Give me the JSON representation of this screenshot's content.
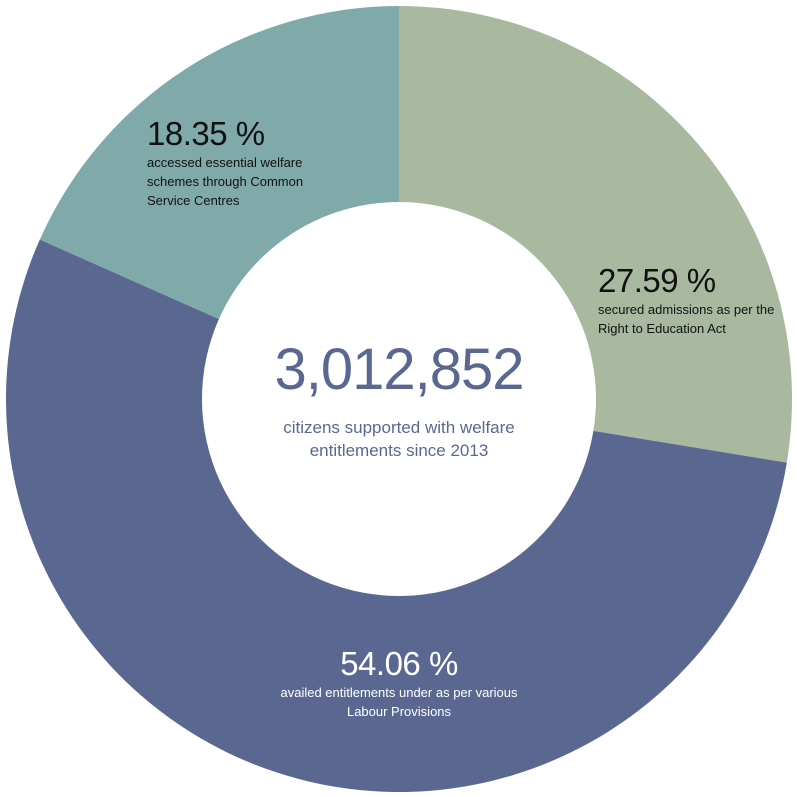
{
  "chart_data": {
    "type": "donut",
    "center_text": "3,012,852",
    "center_subtitle": "citizens supported with welfare entitlements since 2013",
    "categories": [
      "secured admissions as per the Right to Education Act",
      "availed entitlements under as per various Labour Provisions",
      "accessed essential welfare schemes through Common Service Centres"
    ],
    "values": [
      27.59,
      54.06,
      18.35
    ],
    "value_labels": [
      "27.59 %",
      "54.06 %",
      "18.35 %"
    ],
    "colors": [
      "#a8b9a0",
      "#5a6891",
      "#7faaa9"
    ],
    "label_colors": [
      "#111111",
      "#ffffff",
      "#111111"
    ],
    "center_color": "#5a6891"
  }
}
